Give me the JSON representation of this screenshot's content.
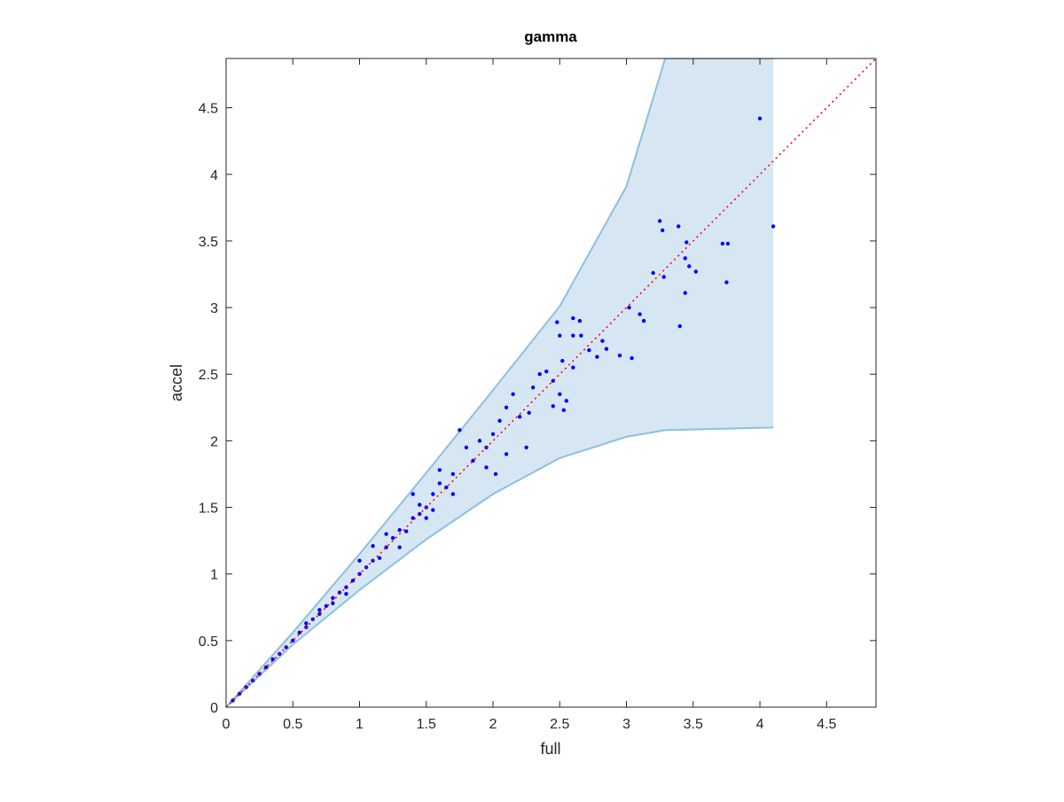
{
  "chart_data": {
    "type": "scatter",
    "title": "gamma",
    "x_label": "full",
    "y_label": "accel",
    "xlim": [
      0,
      4.87
    ],
    "ylim": [
      0,
      4.87
    ],
    "xticks": [
      0,
      0.5,
      1,
      1.5,
      2,
      2.5,
      3,
      3.5,
      4,
      4.5
    ],
    "yticks": [
      0,
      0.5,
      1,
      1.5,
      2,
      2.5,
      3,
      3.5,
      4,
      4.5
    ],
    "band": {
      "x": [
        0,
        0.5,
        1,
        1.5,
        2,
        2.5,
        3,
        3.29,
        4.1
      ],
      "upper": [
        0,
        0.56,
        1.15,
        1.76,
        2.38,
        3.01,
        3.91,
        4.87,
        4.87
      ],
      "lower": [
        0,
        0.47,
        0.88,
        1.26,
        1.6,
        1.87,
        2.03,
        2.08,
        2.1
      ],
      "color": "#d6e7f3",
      "edge_color": "#8ebfe0"
    },
    "reference_line": {
      "x": [
        0,
        4.87
      ],
      "y": [
        0,
        4.87
      ],
      "color": "#ff0000"
    },
    "points": {
      "color": "#0000ff",
      "x": [
        4.0,
        4.1,
        3.25,
        3.27,
        3.39,
        3.45,
        3.44,
        3.47,
        3.52,
        3.44,
        3.72,
        3.76,
        3.75,
        3.4,
        3.2,
        3.28,
        3.13,
        3.02,
        3.1,
        2.95,
        3.04,
        2.6,
        2.65,
        2.48,
        2.5,
        2.6,
        2.66,
        2.52,
        2.5,
        2.55,
        2.45,
        2.53,
        2.72,
        2.82,
        2.85,
        2.78,
        2.4,
        2.35,
        2.3,
        2.2,
        2.27,
        2.15,
        2.1,
        2.05,
        2.0,
        1.95,
        1.9,
        1.85,
        2.1,
        2.25,
        1.75,
        1.8,
        1.7,
        1.65,
        1.6,
        1.55,
        1.5,
        1.45,
        1.4,
        1.35,
        1.3,
        1.25,
        1.2,
        1.15,
        1.1,
        1.05,
        1.0,
        0.95,
        0.9,
        0.85,
        0.8,
        0.75,
        0.7,
        0.65,
        0.6,
        0.55,
        0.5,
        0.45,
        0.4,
        0.35,
        0.3,
        0.25,
        0.2,
        0.15,
        0.1,
        0.05,
        1.6,
        1.5,
        1.4,
        1.2,
        1.3,
        1.0,
        0.9,
        1.1,
        1.7,
        1.95,
        2.02,
        2.6,
        2.45,
        1.55,
        1.45,
        0.8,
        0.7,
        0.6
      ],
      "y": [
        4.42,
        3.61,
        3.65,
        3.58,
        3.61,
        3.49,
        3.37,
        3.31,
        3.27,
        3.11,
        3.48,
        3.48,
        3.19,
        2.86,
        3.26,
        3.23,
        2.9,
        3.0,
        2.95,
        2.64,
        2.62,
        2.92,
        2.9,
        2.89,
        2.79,
        2.79,
        2.79,
        2.6,
        2.35,
        2.3,
        2.26,
        2.23,
        2.68,
        2.75,
        2.69,
        2.63,
        2.52,
        2.5,
        2.4,
        2.18,
        2.21,
        2.35,
        2.25,
        2.15,
        2.05,
        1.95,
        2.0,
        1.85,
        1.9,
        1.95,
        2.08,
        1.95,
        1.75,
        1.65,
        1.68,
        1.6,
        1.5,
        1.45,
        1.42,
        1.32,
        1.33,
        1.27,
        1.2,
        1.12,
        1.1,
        1.05,
        1.0,
        0.95,
        0.9,
        0.86,
        0.82,
        0.76,
        0.7,
        0.66,
        0.6,
        0.56,
        0.5,
        0.45,
        0.4,
        0.36,
        0.3,
        0.25,
        0.2,
        0.15,
        0.1,
        0.05,
        1.78,
        1.42,
        1.6,
        1.3,
        1.2,
        1.1,
        0.85,
        1.21,
        1.6,
        1.8,
        1.75,
        2.55,
        2.45,
        1.48,
        1.52,
        0.78,
        0.73,
        0.63
      ]
    }
  }
}
